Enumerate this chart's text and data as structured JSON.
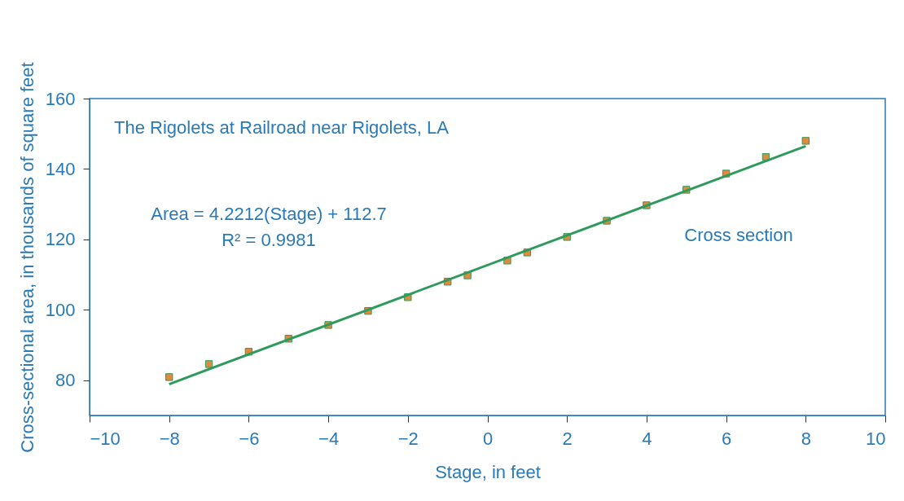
{
  "chart_data": {
    "type": "scatter",
    "title": "The Rigolets at Railroad near Rigolets, LA",
    "xlabel": "Stage, in feet",
    "ylabel": "Cross-sectional area, in thousands of square feet",
    "x": [
      -8,
      -7,
      -6,
      -5,
      -4,
      -3,
      -2,
      -1,
      -0.5,
      0.5,
      1,
      2,
      3,
      4,
      5,
      6,
      7,
      8
    ],
    "series": [
      {
        "color": "#e08a3c",
        "marker": "square",
        "values": [
          80.9,
          84.6,
          88.1,
          91.8,
          95.7,
          99.7,
          103.6,
          108.0,
          109.8,
          114.0,
          116.3,
          120.7,
          125.3,
          129.7,
          134.1,
          138.7,
          143.4,
          148.0
        ]
      },
      {
        "type": "line",
        "color": "#2e9a5c",
        "x": [
          -8,
          8
        ],
        "values": [
          78.9,
          146.5
        ],
        "marker": "none",
        "line_style": "solid"
      }
    ],
    "xlim": [
      -10,
      10
    ],
    "xticks": [
      -10,
      -8,
      -6,
      -4,
      -2,
      0,
      2,
      4,
      6,
      8,
      10
    ],
    "ylim": [
      70,
      160
    ],
    "yticks": [
      80,
      100,
      120,
      140,
      160
    ],
    "annotations": [
      "Area = 4.2212(Stage) + 112.7",
      "R² = 0.9981",
      "Cross section"
    ],
    "grid": false
  }
}
